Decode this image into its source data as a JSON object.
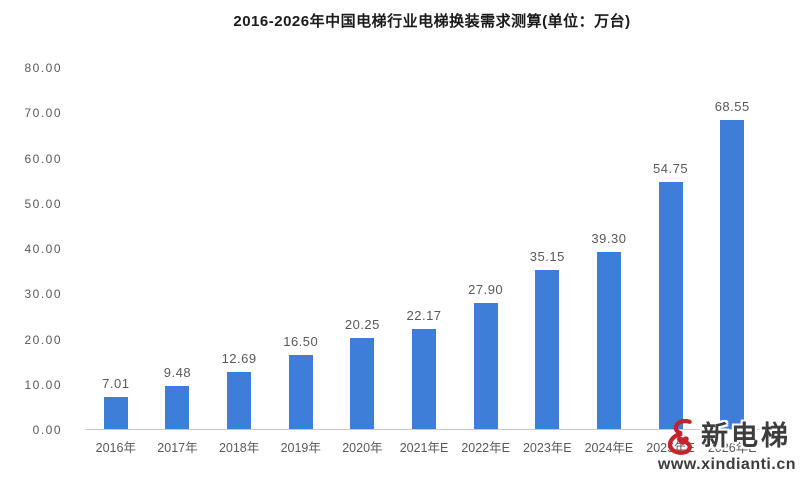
{
  "chart_data": {
    "type": "bar",
    "title": "2016-2026年中国电梯行业电梯换装需求测算(单位：万台)",
    "categories": [
      "2016年",
      "2017年",
      "2018年",
      "2019年",
      "2020年",
      "2021年E",
      "2022年E",
      "2023年E",
      "2024年E",
      "2025年E",
      "2026年E"
    ],
    "values": [
      7.01,
      9.48,
      12.69,
      16.5,
      20.25,
      22.17,
      27.9,
      35.15,
      39.3,
      54.75,
      68.55
    ],
    "value_labels": [
      "7.01",
      "9.48",
      "12.69",
      "16.50",
      "20.25",
      "22.17",
      "27.90",
      "35.15",
      "39.30",
      "54.75",
      "68.55"
    ],
    "xlabel": "",
    "ylabel": "",
    "ylim": [
      0,
      80
    ],
    "yticks": [
      "0.00",
      "10.00",
      "20.00",
      "30.00",
      "40.00",
      "50.00",
      "60.00",
      "70.00",
      "80.00"
    ],
    "grid": false,
    "legend": false
  },
  "colors": {
    "bar": "#3E7ED9",
    "label": "#595959",
    "title": "#1A1A1A",
    "axis_line": "#C9C9C9",
    "watermark_red": "#C3242B",
    "watermark_text": "#3D3D3D"
  },
  "watermark": {
    "brand": "新电梯",
    "url": "www.xindianti.cn"
  }
}
